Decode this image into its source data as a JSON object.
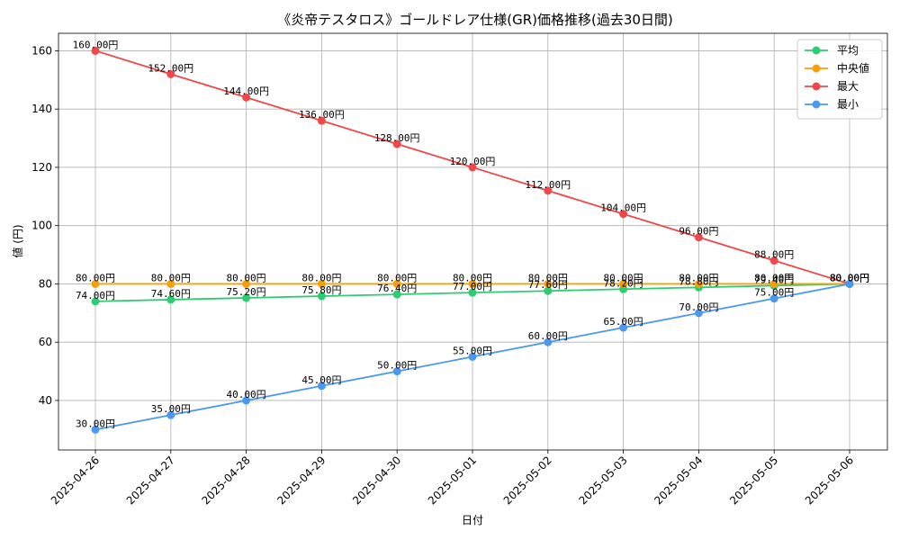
{
  "chart_data": {
    "type": "line",
    "title": "《炎帝テスタロス》ゴールドレア仕様(GR)価格推移(過去30日間)",
    "xlabel": "日付",
    "ylabel": "値 (円)",
    "x": [
      "2025-04-26",
      "2025-04-27",
      "2025-04-28",
      "2025-04-29",
      "2025-04-30",
      "2025-05-01",
      "2025-05-02",
      "2025-05-03",
      "2025-05-04",
      "2025-05-05",
      "2025-05-06"
    ],
    "ylim": [
      23,
      166
    ],
    "yticks": [
      40,
      60,
      80,
      100,
      120,
      140,
      160
    ],
    "grid": true,
    "legend_position": "top-right",
    "data_label_suffix": "円",
    "series": [
      {
        "name": "平均",
        "color": "#2ecc71",
        "values": [
          74.0,
          74.6,
          75.2,
          75.8,
          76.4,
          77.0,
          77.6,
          78.2,
          78.8,
          79.4,
          80.0
        ]
      },
      {
        "name": "中央値",
        "color": "#f5a00a",
        "values": [
          80.0,
          80.0,
          80.0,
          80.0,
          80.0,
          80.0,
          80.0,
          80.0,
          80.0,
          80.0,
          80.0
        ]
      },
      {
        "name": "最大",
        "color": "#f04848",
        "values": [
          160.0,
          152.0,
          144.0,
          136.0,
          128.0,
          120.0,
          112.0,
          104.0,
          96.0,
          88.0,
          80.0
        ]
      },
      {
        "name": "最小",
        "color": "#4a98f0",
        "values": [
          30.0,
          35.0,
          40.0,
          45.0,
          50.0,
          55.0,
          60.0,
          65.0,
          70.0,
          75.0,
          80.0
        ]
      }
    ]
  }
}
